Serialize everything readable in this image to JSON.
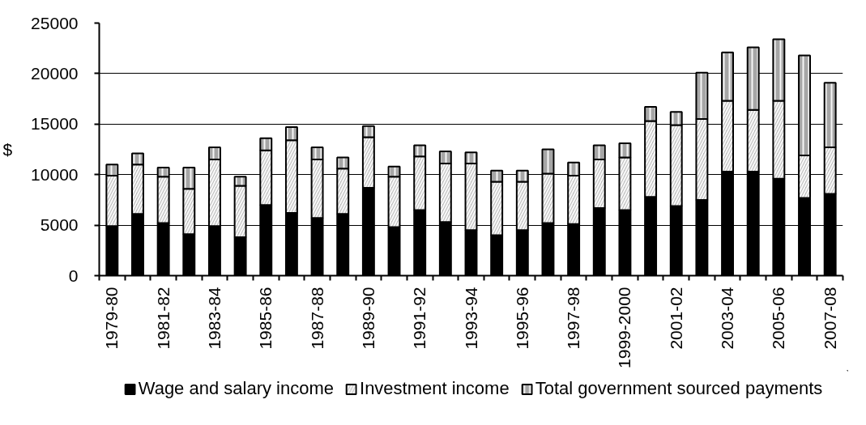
{
  "chart_data": {
    "type": "bar",
    "stacked": true,
    "ylabel": "$",
    "categories": [
      "1979-80",
      null,
      "1981-82",
      null,
      "1983-84",
      null,
      "1985-86",
      null,
      "1987-88",
      null,
      "1989-90",
      null,
      "1991-92",
      null,
      "1993-94",
      null,
      "1995-96",
      null,
      "1997-98",
      null,
      "1999-2000",
      null,
      "2001-02",
      null,
      "2003-04",
      null,
      "2005-06",
      null,
      "2007-08"
    ],
    "series": [
      {
        "name": "Wage and salary income",
        "color": "#000000",
        "values": [
          4900,
          6100,
          5200,
          4100,
          4900,
          3800,
          7000,
          6200,
          5700,
          6100,
          8700,
          4800,
          6500,
          5300,
          4500,
          4000,
          4500,
          5200,
          5100,
          6700,
          6500,
          7800,
          6900,
          7500,
          10300,
          10300,
          9600,
          7700,
          8100
        ]
      },
      {
        "name": "Investment income",
        "color": "#bfbfbf",
        "values": [
          5000,
          4900,
          4600,
          4500,
          6600,
          5100,
          5400,
          7200,
          5800,
          4500,
          5000,
          5000,
          5300,
          5800,
          6600,
          5300,
          4800,
          4900,
          4800,
          4800,
          5200,
          7500,
          8000,
          8000,
          7000,
          6100,
          7700,
          4200,
          4600
        ]
      },
      {
        "name": "Total government sourced payments",
        "color": "#a6a6a6",
        "values": [
          1100,
          1100,
          900,
          2100,
          1200,
          900,
          1200,
          1300,
          1200,
          1100,
          1100,
          1000,
          1100,
          1200,
          1100,
          1100,
          1100,
          2400,
          1300,
          1400,
          1400,
          1400,
          1300,
          4600,
          4800,
          6200,
          6100,
          9900,
          6400
        ]
      }
    ],
    "ylim": [
      0,
      25000
    ],
    "yticks": [
      0,
      5000,
      10000,
      15000,
      20000,
      25000
    ],
    "grid": "y",
    "legend": "bottom"
  }
}
